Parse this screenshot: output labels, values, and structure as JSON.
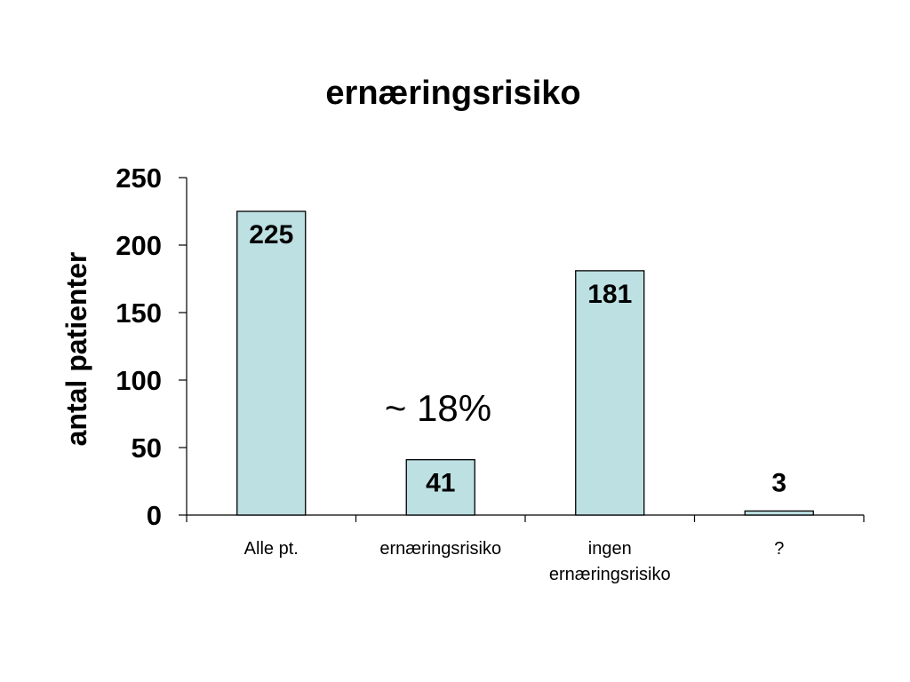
{
  "chart_data": {
    "type": "bar",
    "title": "ernæringsrisiko",
    "ylabel": "antal patienter",
    "xlabel": "",
    "categories": [
      [
        "Alle pt."
      ],
      [
        "ernæringsrisiko"
      ],
      [
        "ingen",
        "ernæringsrisiko"
      ],
      [
        "?"
      ]
    ],
    "values": [
      225,
      41,
      181,
      3
    ],
    "data_labels": [
      "225",
      "41",
      "181",
      "3"
    ],
    "ylim": [
      0,
      250
    ],
    "yticks": [
      0,
      50,
      100,
      150,
      200,
      250
    ],
    "grid": false,
    "legend": "none",
    "bar_color": "#bde0e3",
    "annotation": "~ 18%"
  }
}
